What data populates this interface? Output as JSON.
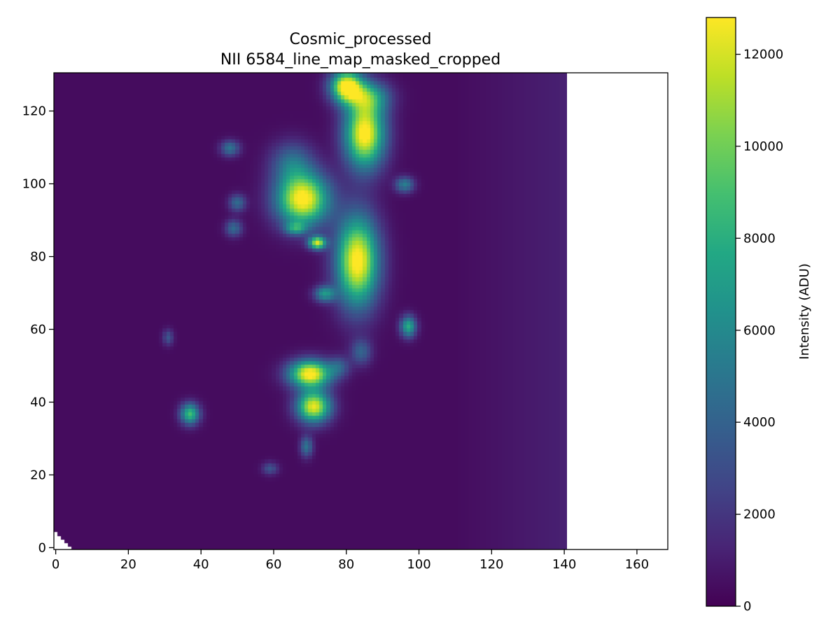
{
  "chart_data": {
    "type": "heatmap",
    "title": [
      "Cosmic_processed",
      "NII 6584_line_map_masked_cropped"
    ],
    "xlabel": "",
    "ylabel": "",
    "xlim": [
      -0.5,
      168.5
    ],
    "ylim": [
      -0.5,
      130.5
    ],
    "x_ticks": [
      0,
      20,
      40,
      60,
      80,
      100,
      120,
      140,
      160
    ],
    "y_ticks": [
      0,
      20,
      40,
      60,
      80,
      100,
      120
    ],
    "data_extent_x": [
      -0.5,
      140.5
    ],
    "colormap": "viridis",
    "background_level": 400,
    "colorbar": {
      "label": "Intensity (ADU)",
      "range": [
        0,
        12800
      ],
      "ticks": [
        0,
        2000,
        4000,
        6000,
        8000,
        10000,
        12000
      ]
    },
    "bright_regions": [
      {
        "x": 80,
        "y": 127,
        "peak": 13000,
        "sx": 3.0,
        "sy": 3.0
      },
      {
        "x": 85,
        "y": 114,
        "peak": 13000,
        "sx": 3.8,
        "sy": 6.5
      },
      {
        "x": 68,
        "y": 96,
        "peak": 13000,
        "sx": 5.0,
        "sy": 5.0
      },
      {
        "x": 83,
        "y": 79,
        "peak": 13000,
        "sx": 4.0,
        "sy": 8.5
      },
      {
        "x": 70,
        "y": 48,
        "peak": 13000,
        "sx": 4.0,
        "sy": 2.6
      },
      {
        "x": 71,
        "y": 39,
        "peak": 12000,
        "sx": 3.2,
        "sy": 3.0
      },
      {
        "x": 37,
        "y": 37,
        "peak": 8500,
        "sx": 1.8,
        "sy": 2.0
      },
      {
        "x": 72,
        "y": 84,
        "peak": 11000,
        "sx": 1.6,
        "sy": 1.2
      },
      {
        "x": 97,
        "y": 61,
        "peak": 7500,
        "sx": 1.5,
        "sy": 2.0
      },
      {
        "x": 96,
        "y": 100,
        "peak": 5000,
        "sx": 1.8,
        "sy": 1.5
      },
      {
        "x": 48,
        "y": 110,
        "peak": 4500,
        "sx": 1.8,
        "sy": 1.5
      },
      {
        "x": 50,
        "y": 95,
        "peak": 4000,
        "sx": 1.6,
        "sy": 1.6
      },
      {
        "x": 49,
        "y": 88,
        "peak": 4000,
        "sx": 1.6,
        "sy": 1.6
      },
      {
        "x": 66,
        "y": 88,
        "peak": 5000,
        "sx": 2.0,
        "sy": 1.2
      },
      {
        "x": 74,
        "y": 70,
        "peak": 6000,
        "sx": 2.0,
        "sy": 1.5
      },
      {
        "x": 69,
        "y": 28,
        "peak": 4500,
        "sx": 1.2,
        "sy": 2.0
      },
      {
        "x": 59,
        "y": 22,
        "peak": 3000,
        "sx": 1.5,
        "sy": 1.2
      },
      {
        "x": 31,
        "y": 58,
        "peak": 3000,
        "sx": 1.0,
        "sy": 1.5
      },
      {
        "x": 86,
        "y": 124,
        "peak": 6000,
        "sx": 4.0,
        "sy": 3.0
      },
      {
        "x": 65,
        "y": 106,
        "peak": 4000,
        "sx": 4.0,
        "sy": 4.0
      },
      {
        "x": 84,
        "y": 54,
        "peak": 3500,
        "sx": 2.0,
        "sy": 2.5
      },
      {
        "x": 78,
        "y": 50,
        "peak": 3000,
        "sx": 2.0,
        "sy": 2.0
      }
    ]
  }
}
